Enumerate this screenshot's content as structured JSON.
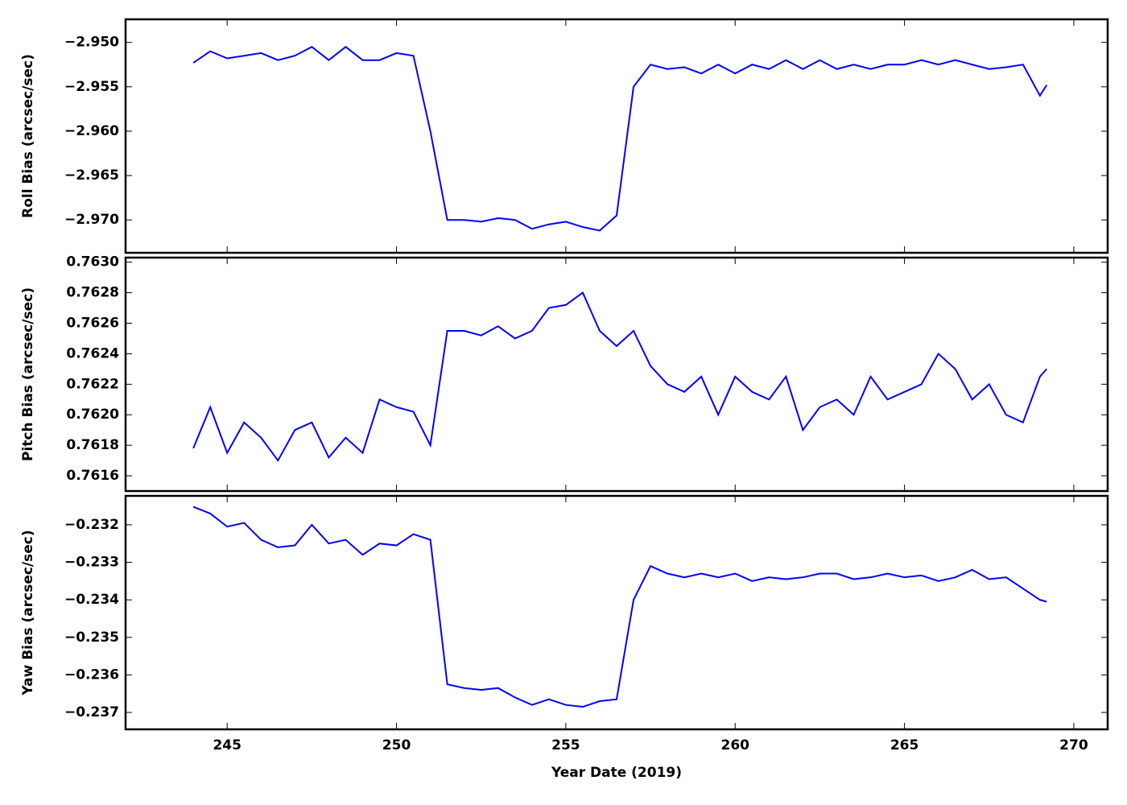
{
  "chart_data": [
    {
      "type": "line",
      "ylabel": "Roll Bias (arcsec/sec)",
      "color": "#0000ff",
      "x": [
        244,
        244.5,
        245,
        245.5,
        246,
        246.5,
        247,
        247.5,
        248,
        248.5,
        249,
        249.5,
        250,
        250.5,
        251,
        251.5,
        252,
        252.5,
        253,
        253.5,
        254,
        254.5,
        255,
        255.5,
        256,
        256.5,
        257,
        257.5,
        258,
        258.5,
        259,
        259.5,
        260,
        260.5,
        261,
        261.5,
        262,
        262.5,
        263,
        263.5,
        264,
        264.5,
        265,
        265.5,
        266,
        266.5,
        267,
        267.5,
        268,
        268.5,
        269,
        269.2
      ],
      "values": [
        -2.9523,
        -2.951,
        -2.9518,
        -2.9515,
        -2.9512,
        -2.952,
        -2.9515,
        -2.9505,
        -2.952,
        -2.9505,
        -2.952,
        -2.952,
        -2.9512,
        -2.9515,
        -2.96,
        -2.97,
        -2.97,
        -2.9702,
        -2.9698,
        -2.97,
        -2.971,
        -2.9705,
        -2.9702,
        -2.9708,
        -2.9712,
        -2.9695,
        -2.955,
        -2.9525,
        -2.953,
        -2.9528,
        -2.9535,
        -2.9525,
        -2.9535,
        -2.9525,
        -2.953,
        -2.952,
        -2.953,
        -2.952,
        -2.953,
        -2.9525,
        -2.953,
        -2.9525,
        -2.9525,
        -2.952,
        -2.9525,
        -2.952,
        -2.9525,
        -2.953,
        -2.9528,
        -2.9525,
        -2.956,
        -2.9548
      ],
      "xlim": [
        242,
        271
      ],
      "xticks": [
        245,
        250,
        255,
        260,
        265,
        270
      ],
      "ylim": [
        -2.9737,
        -2.9474
      ],
      "yticks": [
        {
          "value": -2.97,
          "label": "−2.970"
        },
        {
          "value": -2.965,
          "label": "−2.965"
        },
        {
          "value": -2.96,
          "label": "−2.960"
        },
        {
          "value": -2.955,
          "label": "−2.955"
        },
        {
          "value": -2.95,
          "label": "−2.950"
        }
      ]
    },
    {
      "type": "line",
      "ylabel": "Pitch Bias (arcsec/sec)",
      "color": "#0000ff",
      "x": [
        244,
        244.5,
        245,
        245.5,
        246,
        246.5,
        247,
        247.5,
        248,
        248.5,
        249,
        249.5,
        250,
        250.5,
        251,
        251.5,
        252,
        252.5,
        253,
        253.5,
        254,
        254.5,
        255,
        255.5,
        256,
        256.5,
        257,
        257.5,
        258,
        258.5,
        259,
        259.5,
        260,
        260.5,
        261,
        261.5,
        262,
        262.5,
        263,
        263.5,
        264,
        264.5,
        265,
        265.5,
        266,
        266.5,
        267,
        267.5,
        268,
        268.5,
        269,
        269.2
      ],
      "values": [
        0.76178,
        0.76205,
        0.76175,
        0.76195,
        0.76185,
        0.7617,
        0.7619,
        0.76195,
        0.76172,
        0.76185,
        0.76175,
        0.7621,
        0.76205,
        0.76202,
        0.7618,
        0.76255,
        0.76255,
        0.76252,
        0.76258,
        0.7625,
        0.76255,
        0.7627,
        0.76272,
        0.7628,
        0.76255,
        0.76245,
        0.76255,
        0.76232,
        0.7622,
        0.76215,
        0.76225,
        0.762,
        0.76225,
        0.76215,
        0.7621,
        0.76225,
        0.7619,
        0.76205,
        0.7621,
        0.762,
        0.76225,
        0.7621,
        0.76215,
        0.7622,
        0.7624,
        0.7623,
        0.7621,
        0.7622,
        0.762,
        0.76195,
        0.76225,
        0.7623
      ],
      "xlim": [
        242,
        271
      ],
      "xticks": [
        245,
        250,
        255,
        260,
        265,
        270
      ],
      "ylim": [
        0.7615,
        0.76303
      ],
      "yticks": [
        {
          "value": 0.7616,
          "label": "0.7616"
        },
        {
          "value": 0.7618,
          "label": "0.7618"
        },
        {
          "value": 0.762,
          "label": "0.7620"
        },
        {
          "value": 0.7622,
          "label": "0.7622"
        },
        {
          "value": 0.7624,
          "label": "0.7624"
        },
        {
          "value": 0.7626,
          "label": "0.7626"
        },
        {
          "value": 0.7628,
          "label": "0.7628"
        },
        {
          "value": 0.763,
          "label": "0.7630"
        }
      ]
    },
    {
      "type": "line",
      "ylabel": "Yaw Bias (arcsec/sec)",
      "xlabel": "Year Date (2019)",
      "color": "#0000ff",
      "x": [
        244,
        244.5,
        245,
        245.5,
        246,
        246.5,
        247,
        247.5,
        248,
        248.5,
        249,
        249.5,
        250,
        250.5,
        251,
        251.5,
        252,
        252.5,
        253,
        253.5,
        254,
        254.5,
        255,
        255.5,
        256,
        256.5,
        257,
        257.5,
        258,
        258.5,
        259,
        259.5,
        260,
        260.5,
        261,
        261.5,
        262,
        262.5,
        263,
        263.5,
        264,
        264.5,
        265,
        265.5,
        266,
        266.5,
        267,
        267.5,
        268,
        268.5,
        269,
        269.2
      ],
      "values": [
        -0.23152,
        -0.2317,
        -0.23205,
        -0.23195,
        -0.2324,
        -0.2326,
        -0.23255,
        -0.232,
        -0.2325,
        -0.2324,
        -0.2328,
        -0.2325,
        -0.23255,
        -0.23225,
        -0.2324,
        -0.23625,
        -0.23635,
        -0.2364,
        -0.23635,
        -0.2366,
        -0.2368,
        -0.23665,
        -0.2368,
        -0.23685,
        -0.2367,
        -0.23665,
        -0.234,
        -0.2331,
        -0.2333,
        -0.2334,
        -0.2333,
        -0.2334,
        -0.2333,
        -0.2335,
        -0.2334,
        -0.23345,
        -0.2334,
        -0.2333,
        -0.2333,
        -0.23345,
        -0.2334,
        -0.2333,
        -0.2334,
        -0.23335,
        -0.2335,
        -0.2334,
        -0.2332,
        -0.23345,
        -0.2334,
        -0.2337,
        -0.234,
        -0.23405
      ],
      "xlim": [
        242,
        271
      ],
      "xticks": [
        245,
        250,
        255,
        260,
        265,
        270
      ],
      "ylim": [
        -0.23745,
        -0.23123
      ],
      "yticks": [
        {
          "value": -0.237,
          "label": "−0.237"
        },
        {
          "value": -0.236,
          "label": "−0.236"
        },
        {
          "value": -0.235,
          "label": "−0.235"
        },
        {
          "value": -0.234,
          "label": "−0.234"
        },
        {
          "value": -0.233,
          "label": "−0.233"
        },
        {
          "value": -0.232,
          "label": "−0.232"
        }
      ]
    }
  ]
}
